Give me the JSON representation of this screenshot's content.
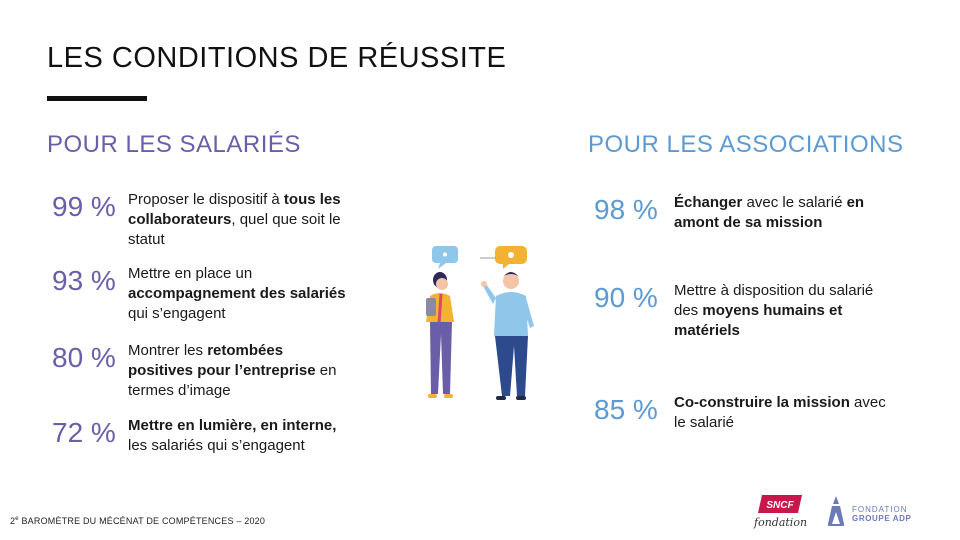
{
  "slide": {
    "title": "LES CONDITIONS DE RÉUSSITE"
  },
  "left": {
    "heading": "POUR LES SALARIÉS",
    "items": [
      {
        "pct": "99 %",
        "parts": [
          {
            "t": "Proposer le dispositif à ",
            "b": false
          },
          {
            "t": "tous les collaborateurs",
            "b": true
          },
          {
            "t": ", quel que soit le statut",
            "b": false
          }
        ]
      },
      {
        "pct": "93 %",
        "parts": [
          {
            "t": "Mettre en place un ",
            "b": false
          },
          {
            "t": "accompagnement des salariés",
            "b": true
          },
          {
            "t": " qui s’engagent",
            "b": false
          }
        ]
      },
      {
        "pct": "80 %",
        "parts": [
          {
            "t": "Montrer les ",
            "b": false
          },
          {
            "t": "retombées positives pour l’entreprise",
            "b": true
          },
          {
            "t": " en termes d’image",
            "b": false
          }
        ]
      },
      {
        "pct": "72 %",
        "parts": [
          {
            "t": "Mettre en lumière, en interne,",
            "b": true
          },
          {
            "t": " les salariés qui s’engagent",
            "b": false
          }
        ]
      }
    ]
  },
  "right": {
    "heading": "POUR LES ASSOCIATIONS",
    "items": [
      {
        "pct": "98 %",
        "parts": [
          {
            "t": "Échanger",
            "b": true
          },
          {
            "t": " avec le salarié ",
            "b": false
          },
          {
            "t": "en amont de sa mission",
            "b": true
          }
        ]
      },
      {
        "pct": "90 %",
        "parts": [
          {
            "t": "Mettre à disposition  du salarié des ",
            "b": false
          },
          {
            "t": "moyens humains et matériels",
            "b": true
          }
        ]
      },
      {
        "pct": "85 %",
        "parts": [
          {
            "t": "Co-construire la mission",
            "b": true
          },
          {
            "t": " avec le salarié",
            "b": false
          }
        ]
      }
    ]
  },
  "footer": {
    "prefix": "2",
    "sup": "e",
    "text": " BAROMÈTRE DU MÉCÉNAT DE COMPÉTENCES – 2020"
  },
  "logos": {
    "sncf_mark": "SNCF",
    "sncf_sub": "fondation",
    "adp_line1": "FONDATION",
    "adp_line2": "GROUPE ADP"
  },
  "colors": {
    "left_accent": "#6b5ea8",
    "right_accent": "#5e9ad2",
    "sncf_red": "#c8174a"
  }
}
